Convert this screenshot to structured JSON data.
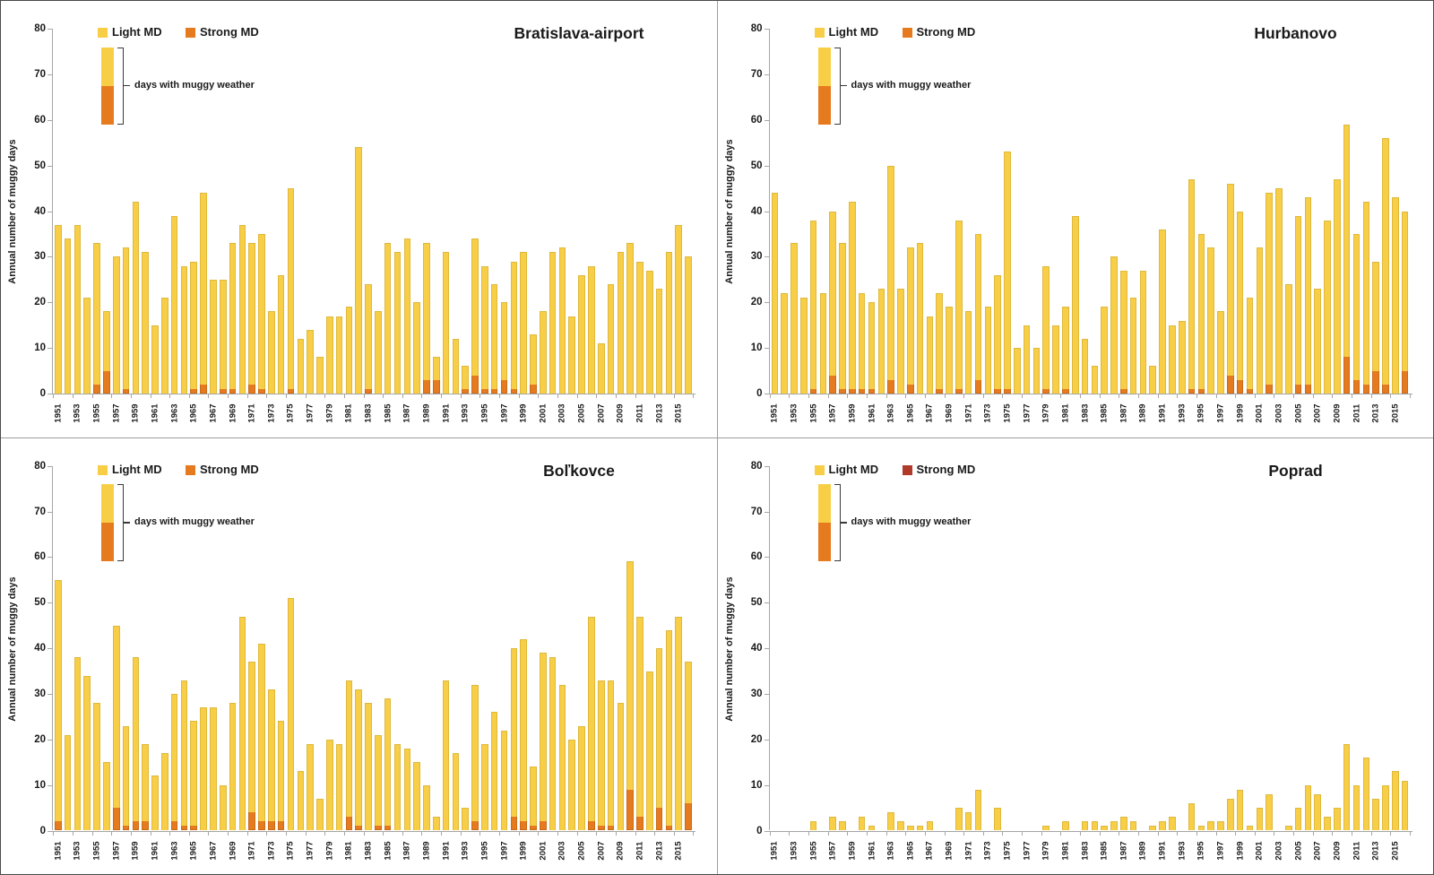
{
  "figure": {
    "y_axis_label": "Annual number of muggy days",
    "legend": {
      "light_label": "Light MD",
      "strong_label": "Strong MD",
      "annotation": "days with muggy weather"
    }
  },
  "chart_data": {
    "type": "bar",
    "stacked": true,
    "grid": "off",
    "legend_position": "top-left-inside",
    "ylabel": "Annual number of muggy days",
    "ylim": [
      0,
      80
    ],
    "yticks": [
      0,
      10,
      20,
      30,
      40,
      50,
      60,
      70,
      80
    ],
    "years": [
      1951,
      1952,
      1953,
      1954,
      1955,
      1956,
      1957,
      1958,
      1959,
      1960,
      1961,
      1962,
      1963,
      1964,
      1965,
      1966,
      1967,
      1968,
      1969,
      1970,
      1971,
      1972,
      1973,
      1974,
      1975,
      1976,
      1977,
      1978,
      1979,
      1980,
      1981,
      1982,
      1983,
      1984,
      1985,
      1986,
      1987,
      1988,
      1989,
      1990,
      1991,
      1992,
      1993,
      1994,
      1995,
      1996,
      1997,
      1998,
      1999,
      2000,
      2001,
      2002,
      2003,
      2004,
      2005,
      2006,
      2007,
      2008,
      2009,
      2010,
      2011,
      2012,
      2013,
      2014,
      2015,
      2016
    ],
    "xtick_labels": [
      "1951",
      "1953",
      "1955",
      "1957",
      "1959",
      "1961",
      "1963",
      "1965",
      "1967",
      "1969",
      "1971",
      "1973",
      "1975",
      "1977",
      "1979",
      "1981",
      "1983",
      "1985",
      "1987",
      "1989",
      "1991",
      "1993",
      "1995",
      "1997",
      "1999",
      "2001",
      "2003",
      "2005",
      "2007",
      "2009",
      "2011",
      "2013",
      "2015"
    ],
    "colors": {
      "light_md": "#F8CE46",
      "strong_md": "#E67A1E",
      "strong_md_poprad_legend": "#B03A2A",
      "axis": "#a6a6a6"
    },
    "panels": [
      {
        "title": "Bratislava-airport",
        "light_color": "#F8CE46",
        "strong_color": "#E67A1E",
        "legend_strong_color": "#E67A1E",
        "light": [
          37,
          34,
          37,
          21,
          31,
          13,
          30,
          31,
          42,
          31,
          15,
          21,
          39,
          28,
          28,
          42,
          25,
          24,
          32,
          37,
          31,
          34,
          18,
          26,
          44,
          12,
          14,
          8,
          17,
          17,
          19,
          54,
          23,
          18,
          33,
          31,
          34,
          20,
          30,
          5,
          31,
          12,
          5,
          30,
          27,
          23,
          17,
          28,
          31,
          11,
          18,
          31,
          32,
          17,
          26,
          28,
          11,
          24,
          31,
          33,
          29,
          27,
          23,
          31,
          37,
          30
        ],
        "strong": [
          0,
          0,
          0,
          0,
          2,
          5,
          0,
          1,
          0,
          0,
          0,
          0,
          0,
          0,
          1,
          2,
          0,
          1,
          1,
          0,
          2,
          1,
          0,
          0,
          1,
          0,
          0,
          0,
          0,
          0,
          0,
          0,
          1,
          0,
          0,
          0,
          0,
          0,
          3,
          3,
          0,
          0,
          1,
          4,
          1,
          1,
          3,
          1,
          0,
          2,
          0,
          0,
          0,
          0,
          0,
          0,
          0,
          0,
          0,
          0,
          0,
          0,
          0,
          0,
          0,
          0
        ]
      },
      {
        "title": "Hurbanovo",
        "light_color": "#F8CE46",
        "strong_color": "#E67A1E",
        "legend_strong_color": "#E67A1E",
        "light": [
          44,
          22,
          33,
          21,
          37,
          22,
          36,
          32,
          41,
          21,
          19,
          23,
          47,
          23,
          30,
          33,
          17,
          21,
          19,
          37,
          18,
          32,
          19,
          25,
          52,
          10,
          15,
          10,
          27,
          15,
          18,
          39,
          12,
          6,
          19,
          30,
          26,
          21,
          27,
          6,
          36,
          15,
          16,
          46,
          34,
          32,
          18,
          42,
          37,
          20,
          32,
          42,
          45,
          24,
          37,
          41,
          23,
          38,
          47,
          51,
          32,
          40,
          24,
          54,
          43,
          35
        ],
        "strong": [
          0,
          0,
          0,
          0,
          1,
          0,
          4,
          1,
          1,
          1,
          1,
          0,
          3,
          0,
          2,
          0,
          0,
          1,
          0,
          1,
          0,
          3,
          0,
          1,
          1,
          0,
          0,
          0,
          1,
          0,
          1,
          0,
          0,
          0,
          0,
          0,
          1,
          0,
          0,
          0,
          0,
          0,
          0,
          1,
          1,
          0,
          0,
          4,
          3,
          1,
          0,
          2,
          0,
          0,
          2,
          2,
          0,
          0,
          0,
          8,
          3,
          2,
          5,
          2,
          0,
          5
        ]
      },
      {
        "title": "Boľkovce",
        "light_color": "#F8CE46",
        "strong_color": "#E67A1E",
        "legend_strong_color": "#E67A1E",
        "light": [
          53,
          21,
          38,
          34,
          28,
          15,
          40,
          22,
          36,
          17,
          12,
          17,
          28,
          32,
          23,
          27,
          27,
          10,
          28,
          47,
          33,
          39,
          29,
          22,
          51,
          13,
          19,
          7,
          20,
          19,
          30,
          30,
          28,
          20,
          28,
          19,
          18,
          15,
          10,
          3,
          33,
          17,
          5,
          30,
          19,
          26,
          22,
          37,
          40,
          13,
          37,
          38,
          32,
          20,
          23,
          45,
          32,
          32,
          28,
          50,
          44,
          35,
          35,
          43,
          47,
          31
        ],
        "strong": [
          2,
          0,
          0,
          0,
          0,
          0,
          5,
          1,
          2,
          2,
          0,
          0,
          2,
          1,
          1,
          0,
          0,
          0,
          0,
          0,
          4,
          2,
          2,
          2,
          0,
          0,
          0,
          0,
          0,
          0,
          3,
          1,
          0,
          1,
          1,
          0,
          0,
          0,
          0,
          0,
          0,
          0,
          0,
          2,
          0,
          0,
          0,
          3,
          2,
          1,
          2,
          0,
          0,
          0,
          0,
          2,
          1,
          1,
          0,
          9,
          3,
          0,
          5,
          1,
          0,
          6
        ]
      },
      {
        "title": "Poprad",
        "light_color": "#F8CE46",
        "strong_color": "#E67A1E",
        "legend_strong_color": "#B03A2A",
        "light": [
          0,
          0,
          0,
          0,
          2,
          0,
          3,
          2,
          0,
          3,
          1,
          0,
          4,
          2,
          1,
          1,
          2,
          0,
          0,
          5,
          4,
          9,
          0,
          5,
          0,
          0,
          0,
          0,
          1,
          0,
          2,
          0,
          2,
          2,
          1,
          2,
          3,
          2,
          0,
          1,
          2,
          3,
          0,
          6,
          1,
          2,
          2,
          7,
          9,
          1,
          5,
          8,
          0,
          1,
          5,
          10,
          8,
          3,
          5,
          19,
          10,
          16,
          7,
          10,
          13,
          11
        ],
        "strong": [
          0,
          0,
          0,
          0,
          0,
          0,
          0,
          0,
          0,
          0,
          0,
          0,
          0,
          0,
          0,
          0,
          0,
          0,
          0,
          0,
          0,
          0,
          0,
          0,
          0,
          0,
          0,
          0,
          0,
          0,
          0,
          0,
          0,
          0,
          0,
          0,
          0,
          0,
          0,
          0,
          0,
          0,
          0,
          0,
          0,
          0,
          0,
          0,
          0,
          0,
          0,
          0,
          0,
          0,
          0,
          0,
          0,
          0,
          0,
          0,
          0,
          0,
          0,
          0,
          0,
          0
        ]
      }
    ]
  }
}
